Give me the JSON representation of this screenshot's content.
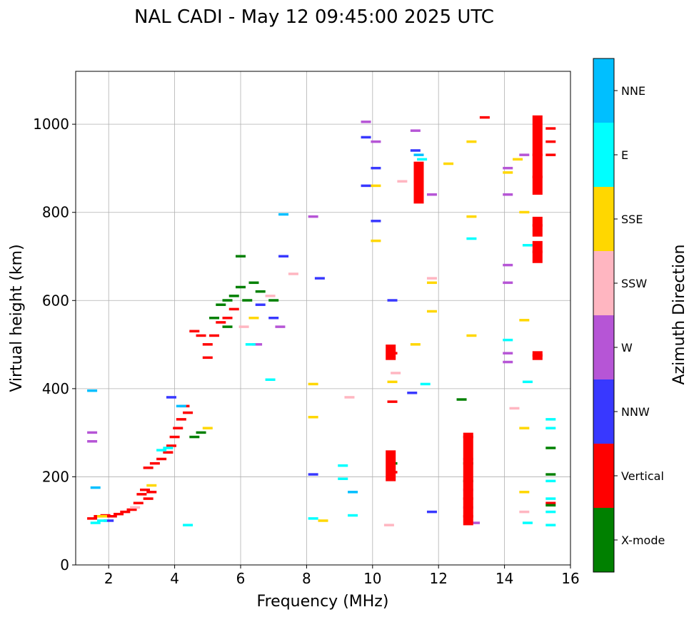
{
  "chart_data": {
    "type": "scatter",
    "title": "NAL CADI - May 12 09:45:00 2025 UTC",
    "xlabel": "Frequency (MHz)",
    "ylabel": "Virtual height (km)",
    "xlim": [
      1,
      16
    ],
    "ylim": [
      0,
      1120
    ],
    "xticks": [
      2,
      4,
      6,
      8,
      10,
      12,
      14,
      16
    ],
    "yticks": [
      0,
      200,
      400,
      600,
      800,
      1000
    ],
    "grid": true,
    "colorbar": {
      "label": "Azimuth Direction",
      "categories": [
        {
          "name": "X-mode",
          "color": "#008000"
        },
        {
          "name": "Vertical",
          "color": "#ff0000"
        },
        {
          "name": "NNW",
          "color": "#3838ff"
        },
        {
          "name": "W",
          "color": "#b655d6"
        },
        {
          "name": "SSW",
          "color": "#ffb6c1"
        },
        {
          "name": "SSE",
          "color": "#ffd700"
        },
        {
          "name": "E",
          "color": "#00ffff"
        },
        {
          "name": "NNE",
          "color": "#00bfff"
        }
      ]
    },
    "traces": [
      {
        "category": "Vertical",
        "points": [
          [
            1.5,
            105
          ],
          [
            1.7,
            110
          ],
          [
            1.9,
            112
          ],
          [
            2.1,
            110
          ],
          [
            2.3,
            115
          ],
          [
            2.5,
            120
          ],
          [
            2.7,
            125
          ],
          [
            2.9,
            140
          ],
          [
            3.0,
            160
          ],
          [
            3.1,
            170
          ],
          [
            3.2,
            150
          ],
          [
            3.3,
            165
          ],
          [
            3.2,
            220
          ],
          [
            3.4,
            230
          ],
          [
            3.6,
            240
          ],
          [
            3.8,
            255
          ],
          [
            3.9,
            270
          ],
          [
            4.0,
            290
          ],
          [
            4.1,
            310
          ],
          [
            4.2,
            330
          ],
          [
            4.3,
            360
          ],
          [
            4.4,
            345
          ],
          [
            4.6,
            530
          ],
          [
            4.8,
            520
          ],
          [
            5.0,
            500
          ],
          [
            5.2,
            520
          ],
          [
            5.4,
            550
          ],
          [
            5.0,
            470
          ],
          [
            5.6,
            560
          ],
          [
            5.8,
            580
          ]
        ]
      },
      {
        "category": "X-mode",
        "points": [
          [
            5.2,
            560
          ],
          [
            5.4,
            590
          ],
          [
            5.6,
            600
          ],
          [
            5.8,
            610
          ],
          [
            6.0,
            630
          ],
          [
            6.2,
            600
          ],
          [
            6.4,
            640
          ],
          [
            5.6,
            540
          ],
          [
            6.0,
            700
          ],
          [
            6.6,
            620
          ],
          [
            7.0,
            600
          ],
          [
            4.8,
            300
          ],
          [
            4.6,
            290
          ]
        ]
      },
      {
        "category": "NNW",
        "points": [
          [
            2.0,
            100
          ],
          [
            3.9,
            380
          ],
          [
            6.6,
            590
          ],
          [
            7.3,
            700
          ],
          [
            7.0,
            560
          ],
          [
            8.4,
            650
          ],
          [
            8.2,
            205
          ],
          [
            9.8,
            970
          ],
          [
            9.8,
            860
          ],
          [
            10.1,
            900
          ],
          [
            10.1,
            780
          ],
          [
            10.6,
            600
          ],
          [
            11.2,
            390
          ],
          [
            11.8,
            120
          ],
          [
            11.3,
            940
          ]
        ]
      },
      {
        "category": "W",
        "points": [
          [
            1.5,
            280
          ],
          [
            1.5,
            300
          ],
          [
            6.5,
            500
          ],
          [
            7.2,
            540
          ],
          [
            8.2,
            790
          ],
          [
            9.8,
            1005
          ],
          [
            10.1,
            960
          ],
          [
            11.3,
            985
          ],
          [
            11.8,
            840
          ],
          [
            14.1,
            900
          ],
          [
            14.1,
            840
          ],
          [
            14.1,
            680
          ],
          [
            14.1,
            640
          ],
          [
            14.1,
            480
          ],
          [
            14.1,
            460
          ],
          [
            14.6,
            930
          ]
        ]
      },
      {
        "category": "SSW",
        "points": [
          [
            2.8,
            130
          ],
          [
            6.1,
            540
          ],
          [
            6.9,
            610
          ],
          [
            7.6,
            660
          ],
          [
            9.3,
            380
          ],
          [
            10.5,
            90
          ],
          [
            10.7,
            435
          ],
          [
            10.9,
            870
          ],
          [
            11.8,
            650
          ],
          [
            14.3,
            355
          ],
          [
            14.6,
            120
          ]
        ]
      },
      {
        "category": "SSE",
        "points": [
          [
            1.8,
            110
          ],
          [
            3.3,
            180
          ],
          [
            5.0,
            310
          ],
          [
            6.4,
            560
          ],
          [
            8.2,
            410
          ],
          [
            8.2,
            335
          ],
          [
            8.5,
            100
          ],
          [
            10.1,
            860
          ],
          [
            10.1,
            735
          ],
          [
            10.6,
            415
          ],
          [
            11.3,
            500
          ],
          [
            11.8,
            640
          ],
          [
            11.8,
            575
          ],
          [
            12.3,
            910
          ],
          [
            13.0,
            960
          ],
          [
            13.0,
            790
          ],
          [
            13.0,
            520
          ],
          [
            14.1,
            890
          ],
          [
            14.4,
            920
          ],
          [
            14.6,
            800
          ],
          [
            14.6,
            555
          ],
          [
            14.6,
            310
          ],
          [
            14.6,
            165
          ]
        ]
      },
      {
        "category": "E",
        "points": [
          [
            1.6,
            95
          ],
          [
            1.8,
            100
          ],
          [
            3.6,
            260
          ],
          [
            3.8,
            265
          ],
          [
            4.4,
            90
          ],
          [
            6.3,
            500
          ],
          [
            6.9,
            420
          ],
          [
            8.2,
            105
          ],
          [
            9.1,
            225
          ],
          [
            9.1,
            195
          ],
          [
            9.4,
            112
          ],
          [
            11.5,
            920
          ],
          [
            11.6,
            410
          ],
          [
            13.0,
            740
          ],
          [
            14.1,
            510
          ],
          [
            14.7,
            725
          ],
          [
            14.7,
            415
          ],
          [
            14.7,
            95
          ],
          [
            15.4,
            330
          ],
          [
            15.4,
            310
          ],
          [
            15.4,
            190
          ],
          [
            15.4,
            150
          ],
          [
            15.4,
            120
          ],
          [
            15.4,
            90
          ]
        ]
      },
      {
        "category": "NNE",
        "points": [
          [
            1.5,
            395
          ],
          [
            1.6,
            175
          ],
          [
            4.2,
            360
          ],
          [
            7.3,
            795
          ],
          [
            9.4,
            165
          ],
          [
            11.4,
            930
          ]
        ]
      },
      {
        "category": "Vertical",
        "points": [
          [
            10.6,
            480
          ],
          [
            10.6,
            370
          ],
          [
            10.6,
            210
          ],
          [
            11.4,
            870
          ],
          [
            12.9,
            290
          ],
          [
            12.9,
            150
          ],
          [
            12.9,
            110
          ],
          [
            15.0,
            930
          ],
          [
            15.0,
            880
          ],
          [
            15.0,
            770
          ],
          [
            15.0,
            710
          ],
          [
            15.0,
            475
          ],
          [
            15.4,
            990
          ],
          [
            15.4,
            960
          ],
          [
            15.4,
            930
          ],
          [
            15.4,
            140
          ],
          [
            13.4,
            1015
          ]
        ]
      },
      {
        "category": "X-mode",
        "points": [
          [
            10.6,
            230
          ],
          [
            12.7,
            375
          ],
          [
            12.9,
            230
          ],
          [
            12.9,
            190
          ],
          [
            15.4,
            265
          ],
          [
            15.4,
            205
          ],
          [
            15.4,
            135
          ]
        ]
      },
      {
        "category": "W",
        "points": [
          [
            12.9,
            240
          ],
          [
            12.9,
            170
          ],
          [
            12.9,
            130
          ],
          [
            13.1,
            95
          ]
        ]
      }
    ],
    "bars": [
      {
        "category": "Vertical",
        "x": 10.55,
        "y0": 465,
        "y1": 500
      },
      {
        "category": "Vertical",
        "x": 10.55,
        "y0": 190,
        "y1": 260
      },
      {
        "category": "Vertical",
        "x": 11.4,
        "y0": 820,
        "y1": 915
      },
      {
        "category": "Vertical",
        "x": 12.9,
        "y0": 90,
        "y1": 300
      },
      {
        "category": "Vertical",
        "x": 15.0,
        "y0": 840,
        "y1": 1020
      },
      {
        "category": "Vertical",
        "x": 15.0,
        "y0": 745,
        "y1": 790
      },
      {
        "category": "Vertical",
        "x": 15.0,
        "y0": 685,
        "y1": 735
      },
      {
        "category": "Vertical",
        "x": 15.0,
        "y0": 465,
        "y1": 485
      }
    ]
  }
}
